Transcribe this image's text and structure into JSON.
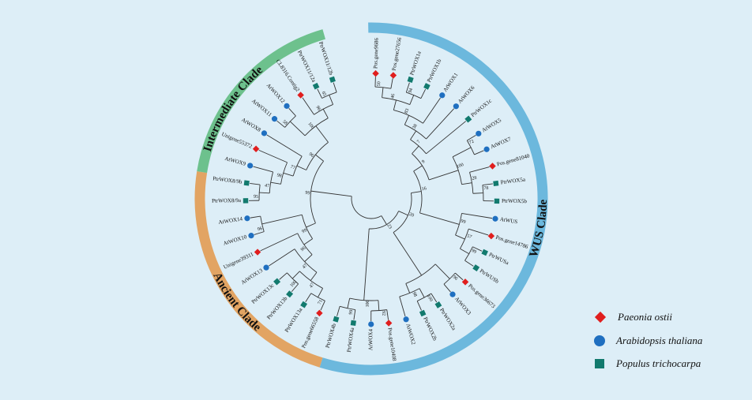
{
  "colors": {
    "background": "#ddeef7",
    "branch": "#333333",
    "wus_ring": "#6cb8dd",
    "ancient_ring": "#e2a463",
    "intermediate_ring": "#6dc18d",
    "paeonia": "#e01e1e",
    "arabidopsis": "#1f6fc0",
    "populus": "#127a6e"
  },
  "clades": [
    {
      "name": "WUS Clade",
      "color": "#6cb8dd"
    },
    {
      "name": "Ancient Clade",
      "color": "#e2a463"
    },
    {
      "name": "Intermediate Clade",
      "color": "#6dc18d"
    }
  ],
  "legend": [
    {
      "species": "Paeonia ostii",
      "marker": "diamond",
      "color": "#e01e1e"
    },
    {
      "species": "Arabidopsis thaliana",
      "marker": "circle",
      "color": "#1f6fc0"
    },
    {
      "species": "Populus trichocarpa",
      "marker": "square",
      "color": "#127a6e"
    }
  ],
  "tree": {
    "c": [
      {
        "bs": "23",
        "c": [
          {
            "bs": "20",
            "c": [
              {
                "bs": "16",
                "c": [
                  {
                    "bs": "9",
                    "c": [
                      {
                        "bs": "7",
                        "c": [
                          {
                            "bs": "38",
                            "c": [
                              {
                                "bs": "83",
                                "c": [
                                  {
                                    "bs": "46",
                                    "c": [
                                      {
                                        "bs": "50",
                                        "c": [
                                          {
                                            "n": "Pos.gene9686",
                                            "sp": "paeonia"
                                          },
                                          {
                                            "n": "Pos.gene27656",
                                            "sp": "paeonia"
                                          }
                                        ]
                                      },
                                      {
                                        "bs": "94",
                                        "c": [
                                          {
                                            "n": "PtrWOX1a",
                                            "sp": "populus"
                                          },
                                          {
                                            "n": "PtrWOX1b",
                                            "sp": "populus"
                                          }
                                        ]
                                      }
                                    ]
                                  },
                                  {
                                    "n": "AtWOX1",
                                    "sp": "arabidopsis"
                                  }
                                ]
                              },
                              {
                                "n": "AtWOX6",
                                "sp": "arabidopsis"
                              }
                            ]
                          },
                          {
                            "n": "PtrWOX1c",
                            "sp": "populus"
                          }
                        ]
                      },
                      {
                        "bs": "100",
                        "c": [
                          {
                            "bs": "72",
                            "c": [
                              {
                                "n": "AtWOX5",
                                "sp": "arabidopsis"
                              },
                              {
                                "n": "AtWOX7",
                                "sp": "arabidopsis"
                              }
                            ]
                          },
                          {
                            "bs": "28",
                            "c": [
                              {
                                "n": "Pos.gene81040",
                                "sp": "paeonia"
                              },
                              {
                                "bs": "78",
                                "c": [
                                  {
                                    "n": "PtrWOX5a",
                                    "sp": "populus"
                                  },
                                  {
                                    "n": "PtrWOX5b",
                                    "sp": "populus"
                                  }
                                ]
                              }
                            ]
                          }
                        ]
                      }
                    ]
                  },
                  {
                    "bs": "99",
                    "c": [
                      {
                        "n": "AtWUS",
                        "sp": "arabidopsis"
                      },
                      {
                        "bs": "57",
                        "c": [
                          {
                            "n": "Pos.gene14786",
                            "sp": "paeonia"
                          },
                          {
                            "bs": "99",
                            "c": [
                              {
                                "n": "PtrWUSa",
                                "sp": "populus"
                              },
                              {
                                "n": "PtrWUSb",
                                "sp": "populus"
                              }
                            ]
                          }
                        ]
                      }
                    ]
                  }
                ]
              },
              {
                "bs": "",
                "c": [
                  {
                    "bs": "96",
                    "c": [
                      {
                        "n": "Pos.gene36673",
                        "sp": "paeonia"
                      },
                      {
                        "n": "AtWOX3",
                        "sp": "arabidopsis"
                      }
                    ]
                  },
                  {
                    "bs": "98",
                    "c": [
                      {
                        "bs": "100",
                        "c": [
                          {
                            "n": "PtrWOX2a",
                            "sp": "populus"
                          },
                          {
                            "n": "PtrWOX2b",
                            "sp": "populus"
                          }
                        ]
                      },
                      {
                        "n": "AtWOX2",
                        "sp": "arabidopsis"
                      }
                    ]
                  }
                ]
              }
            ]
          },
          {
            "bs": "100",
            "c": [
              {
                "bs": "92",
                "c": [
                  {
                    "n": "Pos.gene10408",
                    "sp": "paeonia"
                  },
                  {
                    "n": "AtWOX4",
                    "sp": "arabidopsis"
                  }
                ]
              },
              {
                "bs": "99",
                "c": [
                  {
                    "n": "PtrWOX4a",
                    "sp": "populus"
                  },
                  {
                    "n": "PtrWOX4b",
                    "sp": "populus"
                  }
                ]
              }
            ]
          }
        ]
      },
      {
        "bs": "99",
        "c": [
          {
            "bs": "99",
            "c": [
              {
                "bs": "96",
                "c": [
                  {
                    "bs": "47",
                    "c": [
                      {
                        "bs": "47",
                        "c": [
                          {
                            "bs": "71",
                            "c": [
                              {
                                "n": "Pos.gene66558",
                                "sp": "paeonia"
                              },
                              {
                                "n": "PtrWOX13a",
                                "sp": "populus"
                              }
                            ]
                          },
                          {
                            "bs": "100",
                            "c": [
                              {
                                "n": "PtrWOX13b",
                                "sp": "populus"
                              },
                              {
                                "n": "PtrWOX13c",
                                "sp": "populus"
                              }
                            ]
                          }
                        ]
                      },
                      {
                        "n": "AtWOX13",
                        "sp": "arabidopsis"
                      }
                    ]
                  },
                  {
                    "n": "Unigene39311",
                    "sp": "paeonia"
                  }
                ]
              },
              {
                "bs": "96",
                "c": [
                  {
                    "n": "AtWOX10",
                    "sp": "arabidopsis"
                  },
                  {
                    "n": "AtWOX14",
                    "sp": "arabidopsis"
                  }
                ]
              }
            ]
          },
          {
            "bs": "96",
            "c": [
              {
                "bs": "77",
                "c": [
                  {
                    "bs": "98",
                    "c": [
                      {
                        "bs": "47",
                        "c": [
                          {
                            "bs": "95",
                            "c": [
                              {
                                "n": "PtrWOX8/9a",
                                "sp": "populus"
                              },
                              {
                                "n": "PtrWOX8/9b",
                                "sp": "populus"
                              }
                            ]
                          },
                          {
                            "n": "AtWOX9",
                            "sp": "arabidopsis"
                          }
                        ]
                      },
                      {
                        "n": "Unigene55372",
                        "sp": "paeonia"
                      }
                    ]
                  },
                  {
                    "n": "AtWOX8",
                    "sp": "arabidopsis"
                  }
                ]
              },
              {
                "bs": "100",
                "c": [
                  {
                    "bs": "58",
                    "c": [
                      {
                        "n": "AtWOX11",
                        "sp": "arabidopsis"
                      },
                      {
                        "n": "AtWOX12",
                        "sp": "arabidopsis"
                      }
                    ]
                  },
                  {
                    "bs": "96",
                    "c": [
                      {
                        "n": "CL8316.Contig2",
                        "sp": "paeonia"
                      },
                      {
                        "bs": "65",
                        "c": [
                          {
                            "n": "PtrWOX11/12a",
                            "sp": "populus"
                          },
                          {
                            "n": "PtrWOX11/12b",
                            "sp": "populus"
                          }
                        ]
                      }
                    ]
                  }
                ]
              }
            ]
          }
        ]
      }
    ]
  }
}
